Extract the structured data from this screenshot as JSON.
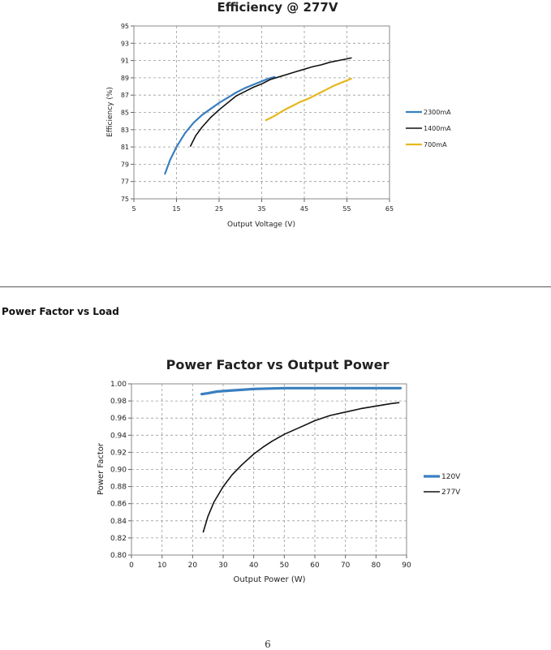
{
  "section_heading": "Power Factor vs Load",
  "page_number": "6",
  "chart_data": [
    {
      "type": "line",
      "title": "Efficiency @ 277V",
      "xlabel": "Output Voltage (V)",
      "ylabel": "Efficiency (%)",
      "xlim": [
        5,
        65
      ],
      "ylim": [
        75,
        95
      ],
      "xticks": [
        5,
        15,
        25,
        35,
        45,
        55,
        65
      ],
      "yticks": [
        75,
        77,
        79,
        81,
        83,
        85,
        87,
        89,
        91,
        93,
        95
      ],
      "grid": true,
      "legend_position": "right",
      "series": [
        {
          "name": "2300mA",
          "color": "#3a7fc0",
          "x": [
            12.3,
            13.5,
            15,
            17,
            19,
            21,
            23,
            25,
            27,
            29,
            31,
            33,
            35,
            36.5,
            38
          ],
          "y": [
            77.9,
            79.5,
            81.0,
            82.6,
            83.8,
            84.7,
            85.4,
            86.1,
            86.7,
            87.3,
            87.8,
            88.2,
            88.6,
            88.9,
            89.1
          ]
        },
        {
          "name": "1400mA",
          "color": "#111111",
          "x": [
            18.3,
            19.5,
            21,
            23,
            25,
            27,
            29,
            31,
            33,
            35,
            37,
            39,
            41,
            43,
            45,
            47,
            49,
            51,
            53,
            55,
            56
          ],
          "y": [
            81.1,
            82.3,
            83.3,
            84.4,
            85.3,
            86.1,
            86.9,
            87.4,
            87.9,
            88.3,
            88.8,
            89.1,
            89.4,
            89.7,
            90.0,
            90.3,
            90.5,
            90.8,
            91.0,
            91.2,
            91.3
          ]
        },
        {
          "name": "700mA",
          "color": "#e6b720",
          "x": [
            36,
            38,
            40,
            42,
            44,
            46,
            48,
            50,
            52,
            54,
            56
          ],
          "y": [
            84.1,
            84.6,
            85.2,
            85.7,
            86.2,
            86.6,
            87.1,
            87.6,
            88.1,
            88.5,
            88.9
          ]
        }
      ]
    },
    {
      "type": "line",
      "title": "Power Factor vs Output Power",
      "xlabel": "Output Power (W)",
      "ylabel": "Power Factor",
      "xlim": [
        0,
        90
      ],
      "ylim": [
        0.8,
        1.0
      ],
      "xticks": [
        0,
        10,
        20,
        30,
        40,
        50,
        60,
        70,
        80,
        90
      ],
      "yticks": [
        "0.80",
        "0.82",
        "0.84",
        "0.86",
        "0.88",
        "0.90",
        "0.92",
        "0.94",
        "0.96",
        "0.98",
        "1.00"
      ],
      "grid": true,
      "legend_position": "right",
      "series": [
        {
          "name": "120V",
          "color": "#3a7fc0",
          "x": [
            23,
            25,
            28,
            32,
            36,
            40,
            45,
            50,
            55,
            60,
            65,
            70,
            75,
            80,
            85,
            88
          ],
          "y": [
            0.988,
            0.989,
            0.991,
            0.992,
            0.993,
            0.994,
            0.9945,
            0.995,
            0.995,
            0.995,
            0.995,
            0.995,
            0.995,
            0.995,
            0.995,
            0.995
          ]
        },
        {
          "name": "277V",
          "color": "#111111",
          "x": [
            23.5,
            25,
            27,
            30,
            33,
            36,
            40,
            43,
            46,
            50,
            55,
            60,
            65,
            70,
            75,
            80,
            85,
            87.5
          ],
          "y": [
            0.827,
            0.845,
            0.862,
            0.88,
            0.894,
            0.905,
            0.918,
            0.926,
            0.933,
            0.941,
            0.949,
            0.957,
            0.963,
            0.967,
            0.971,
            0.974,
            0.977,
            0.978
          ]
        }
      ]
    }
  ]
}
